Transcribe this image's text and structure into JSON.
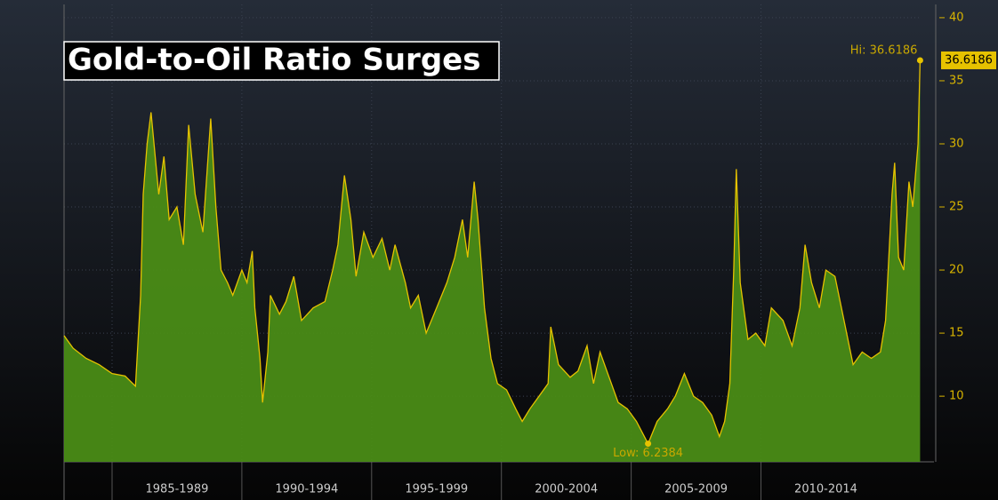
{
  "chart_data": {
    "type": "area",
    "title": "Gold-to-Oil Ratio Surges",
    "x": [
      1983.15,
      1983.5,
      1984.0,
      1984.5,
      1985.0,
      1985.5,
      1985.9,
      1986.1,
      1986.2,
      1986.35,
      1986.5,
      1986.8,
      1987.0,
      1987.2,
      1987.5,
      1987.75,
      1987.95,
      1988.2,
      1988.5,
      1988.8,
      1989.0,
      1989.2,
      1989.45,
      1989.65,
      1990.0,
      1990.2,
      1990.4,
      1990.5,
      1990.7,
      1990.8,
      1991.0,
      1991.1,
      1991.45,
      1991.7,
      1992.0,
      1992.3,
      1992.75,
      1993.2,
      1993.5,
      1993.7,
      1993.95,
      1994.2,
      1994.4,
      1994.7,
      1995.05,
      1995.4,
      1995.7,
      1995.9,
      1996.3,
      1996.5,
      1996.8,
      1997.1,
      1997.5,
      1997.9,
      1998.2,
      1998.5,
      1998.7,
      1998.95,
      1999.1,
      1999.35,
      1999.6,
      1999.85,
      2000.2,
      2000.55,
      2000.8,
      2001.1,
      2001.45,
      2001.8,
      2001.9,
      2002.2,
      2002.65,
      2002.95,
      2003.3,
      2003.55,
      2003.8,
      2004.15,
      2004.5,
      2004.85,
      2005.2,
      2005.65,
      2006.0,
      2006.4,
      2006.7,
      2007.05,
      2007.4,
      2007.75,
      2008.1,
      2008.4,
      2008.6,
      2008.8,
      2008.95,
      2009.05,
      2009.2,
      2009.5,
      2009.8,
      2010.15,
      2010.4,
      2010.85,
      2011.2,
      2011.5,
      2011.7,
      2011.95,
      2012.25,
      2012.5,
      2012.85,
      2013.2,
      2013.55,
      2013.9,
      2014.25,
      2014.6,
      2014.8,
      2015.05,
      2015.15,
      2015.3,
      2015.5,
      2015.7,
      2015.85,
      2016.05,
      2016.13
    ],
    "values": [
      14.8,
      13.8,
      13.0,
      12.5,
      11.8,
      11.6,
      10.8,
      18,
      26,
      30,
      32.5,
      26,
      29,
      24,
      25,
      22,
      31.5,
      26,
      23,
      32,
      25,
      20,
      19,
      18,
      20,
      19,
      21.5,
      17,
      13,
      9.5,
      13.5,
      18,
      16.5,
      17.5,
      19.5,
      16,
      17,
      17.5,
      20,
      22,
      27.5,
      24,
      19.5,
      23,
      21,
      22.5,
      20,
      22,
      19,
      17,
      18,
      15,
      17,
      19,
      21,
      24,
      21,
      27,
      24,
      17,
      13,
      11,
      10.5,
      9,
      8,
      9,
      10,
      11,
      15.5,
      12.5,
      11.5,
      12,
      14,
      11,
      13.5,
      11.5,
      9.5,
      9,
      8,
      6.2384,
      8,
      9,
      10,
      11.8,
      10,
      9.5,
      8.5,
      6.8,
      8,
      11,
      20,
      28,
      19,
      14.5,
      15,
      14,
      17,
      16,
      14,
      17,
      22,
      19,
      17,
      20,
      19.5,
      16,
      12.5,
      13.5,
      13,
      13.5,
      16,
      26,
      28.5,
      21,
      20,
      27,
      25,
      30,
      36.6186
    ],
    "color": "#e6c200",
    "fill": "#4a8c16",
    "xlim": [
      1983.15,
      2016.15
    ],
    "xticks": [
      {
        "value": 1985,
        "label": "1985-1989"
      },
      {
        "value": 1990,
        "label": "1990-1994"
      },
      {
        "value": 1995,
        "label": "1995-1999"
      },
      {
        "value": 2000,
        "label": "2000-2004"
      },
      {
        "value": 2005,
        "label": "2005-2009"
      },
      {
        "value": 2010,
        "label": "2010-2014"
      }
    ],
    "ylim": [
      4.8,
      41.05
    ],
    "yticks": [
      10,
      15,
      20,
      25,
      30,
      35,
      40
    ],
    "grid": true,
    "annotations": [
      {
        "label": "Hi: 36.6186",
        "x": 2016.13,
        "y": 36.6186
      },
      {
        "label": "Low: 6.2384",
        "x": 2005.65,
        "y": 6.2384
      }
    ],
    "last_label": "36.6186"
  }
}
